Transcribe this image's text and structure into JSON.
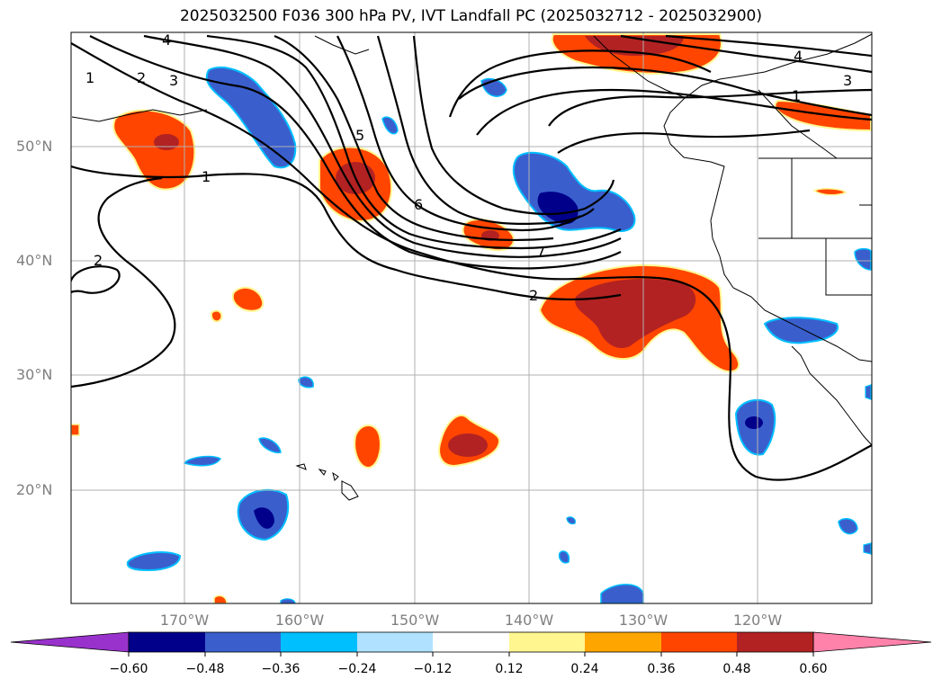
{
  "title": "2025032500 F036 300 hPa PV, IVT Landfall PC (2025032712 - 2025032900)",
  "map": {
    "lat_labels": [
      "50°N",
      "40°N",
      "30°N",
      "20°N"
    ],
    "lon_labels": [
      "170°W",
      "160°W",
      "150°W",
      "140°W",
      "130°W",
      "120°W"
    ],
    "contour_labels": [
      "4",
      "1",
      "2",
      "3",
      "5",
      "1",
      "6",
      "2",
      "7",
      "2",
      "4",
      "3",
      "1"
    ]
  },
  "colorbar": {
    "ticks": [
      "−0.60",
      "−0.48",
      "−0.36",
      "−0.24",
      "−0.12",
      "0.12",
      "0.24",
      "0.36",
      "0.48",
      "0.60"
    ],
    "colors": [
      "#9932cc",
      "#00008b",
      "#3a5fcd",
      "#00bfff",
      "#b0e2ff",
      "#ffffff",
      "#fff68f",
      "#ffa500",
      "#ff4500",
      "#b22222",
      "#ff82ab"
    ]
  },
  "colors": {
    "neg_dark": "#00008b",
    "neg_mid": "#3a5fcd",
    "neg_light": "#00bfff",
    "pos_light": "#ffa500",
    "pos_mid": "#ff4500",
    "pos_dark": "#b22222",
    "pos_pale": "#fff68f"
  }
}
